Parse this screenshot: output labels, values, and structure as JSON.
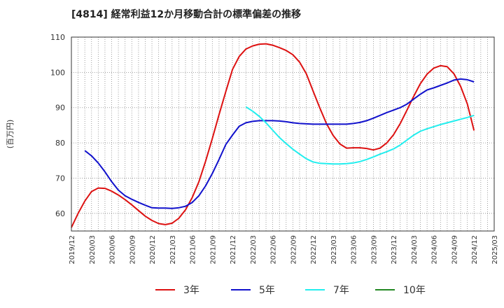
{
  "chart_data": {
    "type": "line",
    "title": "[4814]  経常利益12か月移動合計の標準偏差の推移",
    "ylabel": "(百万円)",
    "xlabel": "",
    "ylim": [
      55,
      110
    ],
    "yticks": [
      60,
      70,
      80,
      90,
      100,
      110
    ],
    "xlim": [
      "2019-12",
      "2025-03"
    ],
    "xticks": [
      "2019/12",
      "2020/03",
      "2020/06",
      "2020/09",
      "2020/12",
      "2021/03",
      "2021/06",
      "2021/09",
      "2021/12",
      "2022/03",
      "2022/06",
      "2022/09",
      "2022/12",
      "2023/03",
      "2023/06",
      "2023/09",
      "2023/12",
      "2024/03",
      "2024/06",
      "2024/09",
      "2024/12",
      "2025/03"
    ],
    "grid": "dotted",
    "legend_position": "bottom",
    "series": [
      {
        "name": "3年",
        "color": "#dd1111",
        "points": [
          [
            "2019-12",
            56.0
          ],
          [
            "2020-01",
            60.0
          ],
          [
            "2020-02",
            63.5
          ],
          [
            "2020-03",
            66.2
          ],
          [
            "2020-04",
            67.2
          ],
          [
            "2020-05",
            67.1
          ],
          [
            "2020-06",
            66.3
          ],
          [
            "2020-07",
            65.2
          ],
          [
            "2020-08",
            63.9
          ],
          [
            "2020-09",
            62.4
          ],
          [
            "2020-10",
            60.8
          ],
          [
            "2020-11",
            59.2
          ],
          [
            "2020-12",
            58.0
          ],
          [
            "2021-01",
            57.1
          ],
          [
            "2021-02",
            56.8
          ],
          [
            "2021-03",
            57.2
          ],
          [
            "2021-04",
            58.6
          ],
          [
            "2021-05",
            61.0
          ],
          [
            "2021-06",
            64.5
          ],
          [
            "2021-07",
            69.0
          ],
          [
            "2021-08",
            74.8
          ],
          [
            "2021-09",
            81.2
          ],
          [
            "2021-10",
            88.0
          ],
          [
            "2021-11",
            94.5
          ],
          [
            "2021-12",
            100.8
          ],
          [
            "2022-01",
            104.5
          ],
          [
            "2022-02",
            106.6
          ],
          [
            "2022-03",
            107.5
          ],
          [
            "2022-04",
            108.0
          ],
          [
            "2022-05",
            108.1
          ],
          [
            "2022-06",
            107.7
          ],
          [
            "2022-07",
            107.0
          ],
          [
            "2022-08",
            106.2
          ],
          [
            "2022-09",
            105.0
          ],
          [
            "2022-10",
            102.9
          ],
          [
            "2022-11",
            99.6
          ],
          [
            "2022-12",
            94.8
          ],
          [
            "2023-01",
            90.0
          ],
          [
            "2023-02",
            85.5
          ],
          [
            "2023-03",
            82.1
          ],
          [
            "2023-04",
            79.7
          ],
          [
            "2023-05",
            78.5
          ],
          [
            "2023-06",
            78.6
          ],
          [
            "2023-07",
            78.6
          ],
          [
            "2023-08",
            78.4
          ],
          [
            "2023-09",
            78.0
          ],
          [
            "2023-10",
            78.5
          ],
          [
            "2023-11",
            80.0
          ],
          [
            "2023-12",
            82.3
          ],
          [
            "2024-01",
            85.5
          ],
          [
            "2024-02",
            89.3
          ],
          [
            "2024-03",
            93.2
          ],
          [
            "2024-04",
            96.8
          ],
          [
            "2024-05",
            99.5
          ],
          [
            "2024-06",
            101.2
          ],
          [
            "2024-07",
            101.9
          ],
          [
            "2024-08",
            101.6
          ],
          [
            "2024-09",
            99.6
          ],
          [
            "2024-10",
            96.0
          ],
          [
            "2024-11",
            91.0
          ],
          [
            "2024-12",
            83.5
          ]
        ]
      },
      {
        "name": "5年",
        "color": "#1111cc",
        "points": [
          [
            "2020-02",
            77.8
          ],
          [
            "2020-03",
            76.3
          ],
          [
            "2020-04",
            74.3
          ],
          [
            "2020-05",
            71.8
          ],
          [
            "2020-06",
            69.0
          ],
          [
            "2020-07",
            66.6
          ],
          [
            "2020-08",
            65.0
          ],
          [
            "2020-09",
            64.0
          ],
          [
            "2020-10",
            63.1
          ],
          [
            "2020-11",
            62.3
          ],
          [
            "2020-12",
            61.6
          ],
          [
            "2021-01",
            61.5
          ],
          [
            "2021-02",
            61.5
          ],
          [
            "2021-03",
            61.4
          ],
          [
            "2021-04",
            61.6
          ],
          [
            "2021-05",
            62.0
          ],
          [
            "2021-06",
            63.1
          ],
          [
            "2021-07",
            65.0
          ],
          [
            "2021-08",
            67.8
          ],
          [
            "2021-09",
            71.3
          ],
          [
            "2021-10",
            75.3
          ],
          [
            "2021-11",
            79.5
          ],
          [
            "2021-12",
            82.2
          ],
          [
            "2022-01",
            84.7
          ],
          [
            "2022-02",
            85.7
          ],
          [
            "2022-03",
            86.1
          ],
          [
            "2022-04",
            86.3
          ],
          [
            "2022-05",
            86.3
          ],
          [
            "2022-06",
            86.3
          ],
          [
            "2022-07",
            86.2
          ],
          [
            "2022-08",
            86.0
          ],
          [
            "2022-09",
            85.7
          ],
          [
            "2022-10",
            85.5
          ],
          [
            "2022-11",
            85.4
          ],
          [
            "2022-12",
            85.3
          ],
          [
            "2023-01",
            85.3
          ],
          [
            "2023-02",
            85.3
          ],
          [
            "2023-03",
            85.3
          ],
          [
            "2023-04",
            85.3
          ],
          [
            "2023-05",
            85.3
          ],
          [
            "2023-06",
            85.5
          ],
          [
            "2023-07",
            85.8
          ],
          [
            "2023-08",
            86.3
          ],
          [
            "2023-09",
            87.0
          ],
          [
            "2023-10",
            87.8
          ],
          [
            "2023-11",
            88.6
          ],
          [
            "2023-12",
            89.3
          ],
          [
            "2024-01",
            90.0
          ],
          [
            "2024-02",
            91.0
          ],
          [
            "2024-03",
            92.4
          ],
          [
            "2024-04",
            93.8
          ],
          [
            "2024-05",
            95.0
          ],
          [
            "2024-06",
            95.6
          ],
          [
            "2024-07",
            96.3
          ],
          [
            "2024-08",
            97.0
          ],
          [
            "2024-09",
            97.8
          ],
          [
            "2024-10",
            98.1
          ],
          [
            "2024-11",
            97.9
          ],
          [
            "2024-12",
            97.3
          ]
        ]
      },
      {
        "name": "7年",
        "color": "#22eeee",
        "points": [
          [
            "2022-02",
            90.2
          ],
          [
            "2022-03",
            89.0
          ],
          [
            "2022-04",
            87.5
          ],
          [
            "2022-05",
            85.7
          ],
          [
            "2022-06",
            83.6
          ],
          [
            "2022-07",
            81.5
          ],
          [
            "2022-08",
            79.8
          ],
          [
            "2022-09",
            78.2
          ],
          [
            "2022-10",
            76.8
          ],
          [
            "2022-11",
            75.5
          ],
          [
            "2022-12",
            74.6
          ],
          [
            "2023-01",
            74.2
          ],
          [
            "2023-02",
            74.1
          ],
          [
            "2023-03",
            74.0
          ],
          [
            "2023-04",
            74.0
          ],
          [
            "2023-05",
            74.1
          ],
          [
            "2023-06",
            74.3
          ],
          [
            "2023-07",
            74.7
          ],
          [
            "2023-08",
            75.3
          ],
          [
            "2023-09",
            76.0
          ],
          [
            "2023-10",
            76.8
          ],
          [
            "2023-11",
            77.5
          ],
          [
            "2023-12",
            78.3
          ],
          [
            "2024-01",
            79.4
          ],
          [
            "2024-02",
            80.8
          ],
          [
            "2024-03",
            82.2
          ],
          [
            "2024-04",
            83.3
          ],
          [
            "2024-05",
            84.0
          ],
          [
            "2024-06",
            84.6
          ],
          [
            "2024-07",
            85.2
          ],
          [
            "2024-08",
            85.7
          ],
          [
            "2024-09",
            86.2
          ],
          [
            "2024-10",
            86.7
          ],
          [
            "2024-11",
            87.2
          ],
          [
            "2024-12",
            87.8
          ]
        ]
      },
      {
        "name": "10年",
        "color": "#228822",
        "points": []
      }
    ]
  }
}
